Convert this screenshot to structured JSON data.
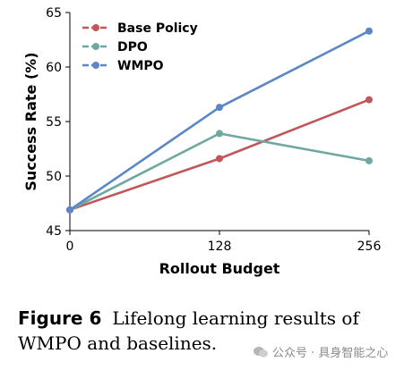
{
  "chart_data": {
    "type": "line",
    "x": [
      0,
      128,
      256
    ],
    "x_tick_labels": [
      "0",
      "128",
      "256"
    ],
    "xlabel": "Rollout Budget",
    "ylabel": "Success Rate (%)",
    "ylim": [
      45,
      65
    ],
    "y_ticks": [
      45,
      50,
      55,
      60,
      65
    ],
    "grid": false,
    "legend_position": "top-left",
    "series": [
      {
        "name": "Base Policy",
        "color": "#c0585b",
        "values": [
          46.9,
          51.6,
          57.0
        ]
      },
      {
        "name": "DPO",
        "color": "#6fa8a0",
        "values": [
          46.9,
          53.9,
          51.4
        ]
      },
      {
        "name": "WMPO",
        "color": "#5b86c7",
        "values": [
          46.9,
          56.3,
          63.3
        ]
      }
    ]
  },
  "caption": {
    "figure_label": "Figure 6",
    "text": "Lifelong learning results of WMPO and baselines."
  },
  "watermark": {
    "text": "公众号 · 具身智能之心",
    "icon": "wechat-icon"
  }
}
